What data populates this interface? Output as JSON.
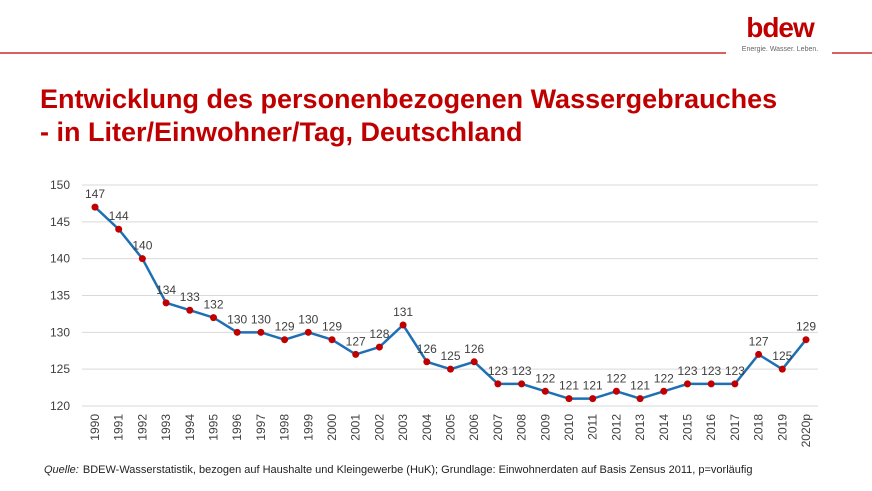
{
  "header": {
    "logo": "bdew",
    "tagline": "Energie. Wasser. Leben."
  },
  "chart_data": {
    "type": "line",
    "title": "Entwicklung des personenbezogenen Wassergebrauches",
    "subtitle": "- in Liter/Einwohner/Tag, Deutschland",
    "categories": [
      "1990",
      "1991",
      "1992",
      "1993",
      "1994",
      "1995",
      "1996",
      "1997",
      "1998",
      "1999",
      "2000",
      "2001",
      "2002",
      "2003",
      "2004",
      "2005",
      "2006",
      "2007",
      "2008",
      "2009",
      "2010",
      "2011",
      "2012",
      "2013",
      "2014",
      "2015",
      "2016",
      "2017",
      "2018",
      "2019",
      "2020p"
    ],
    "series": [
      {
        "color": "#1f6fb4",
        "marker_color": "#c00000",
        "values": [
          147,
          144,
          140,
          134,
          133,
          132,
          130,
          130,
          129,
          130,
          129,
          127,
          128,
          131,
          126,
          125,
          126,
          123,
          123,
          122,
          121,
          121,
          122,
          121,
          122,
          123,
          123,
          123,
          127,
          125,
          129
        ]
      }
    ],
    "ylim": [
      120,
      150
    ],
    "yticks": [
      120,
      125,
      130,
      135,
      140,
      145,
      150
    ],
    "grid": true
  },
  "footer": {
    "label": "Quelle:",
    "text": "BDEW-Wasserstatistik, bezogen auf Haushalte und Kleingewerbe (HuK); Grundlage: Einwohnerdaten auf Basis Zensus 2011, p=vorläufig"
  }
}
